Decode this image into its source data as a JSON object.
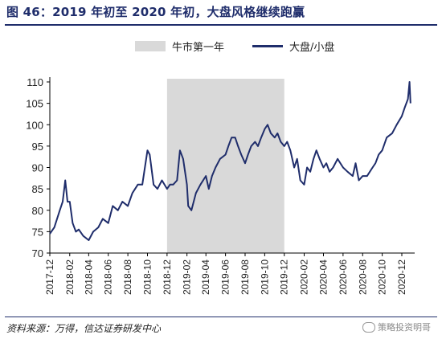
{
  "title": "图 46：2019 年初至 2020 年初，大盘风格继续跑赢",
  "legend": {
    "shade_label": "牛市第一年",
    "line_label": "大盘/小盘"
  },
  "source": "资料来源：万得，信达证券研发中心",
  "watermark": "策略投资明哥",
  "colors": {
    "line": "#1f2d6b",
    "shade": "#d9d9d9",
    "title": "#1f2d6b"
  },
  "chart_data": {
    "type": "line",
    "x_ticks": [
      "2017-12",
      "2018-02",
      "2018-04",
      "2018-06",
      "2018-08",
      "2018-10",
      "2018-12",
      "2019-02",
      "2019-04",
      "2019-06",
      "2019-08",
      "2019-10",
      "2019-12",
      "2020-02",
      "2020-04",
      "2020-06",
      "2020-08",
      "2020-10",
      "2020-12"
    ],
    "y_ticks": [
      "70",
      "75",
      "80",
      "85",
      "90",
      "95",
      "100",
      "105",
      "110"
    ],
    "ylim": [
      70,
      110
    ],
    "shaded_region": {
      "label": "牛市第一年",
      "start": "2018-12",
      "end": "2019-12"
    },
    "series": [
      {
        "name": "大盘/小盘",
        "points": [
          [
            "2017-12",
            74.5
          ],
          [
            "2017-12-15",
            76
          ],
          [
            "2018-01",
            80
          ],
          [
            "2018-01-10",
            82
          ],
          [
            "2018-01-18",
            87
          ],
          [
            "2018-01-25",
            82
          ],
          [
            "2018-02",
            82
          ],
          [
            "2018-02-10",
            77
          ],
          [
            "2018-02-20",
            75
          ],
          [
            "2018-03",
            75.5
          ],
          [
            "2018-03-15",
            74
          ],
          [
            "2018-04",
            73
          ],
          [
            "2018-04-15",
            75
          ],
          [
            "2018-05",
            76
          ],
          [
            "2018-05-15",
            78
          ],
          [
            "2018-06",
            77
          ],
          [
            "2018-06-15",
            81
          ],
          [
            "2018-07",
            80
          ],
          [
            "2018-07-15",
            82
          ],
          [
            "2018-08",
            81
          ],
          [
            "2018-08-15",
            84
          ],
          [
            "2018-09",
            86
          ],
          [
            "2018-09-15",
            86
          ],
          [
            "2018-10",
            94
          ],
          [
            "2018-10-08",
            93
          ],
          [
            "2018-10-20",
            86
          ],
          [
            "2018-11",
            85
          ],
          [
            "2018-11-15",
            87
          ],
          [
            "2018-12",
            85
          ],
          [
            "2018-12-10",
            86
          ],
          [
            "2018-12-20",
            86
          ],
          [
            "2019-01",
            87
          ],
          [
            "2019-01-10",
            94
          ],
          [
            "2019-01-20",
            92
          ],
          [
            "2019-02",
            86
          ],
          [
            "2019-02-05",
            81
          ],
          [
            "2019-02-15",
            80
          ],
          [
            "2019-03",
            84
          ],
          [
            "2019-03-15",
            86
          ],
          [
            "2019-04",
            88
          ],
          [
            "2019-04-10",
            85
          ],
          [
            "2019-04-20",
            88
          ],
          [
            "2019-05",
            90
          ],
          [
            "2019-05-15",
            92
          ],
          [
            "2019-06",
            93
          ],
          [
            "2019-06-10",
            95
          ],
          [
            "2019-06-20",
            97
          ],
          [
            "2019-07",
            97
          ],
          [
            "2019-07-10",
            95
          ],
          [
            "2019-07-20",
            93
          ],
          [
            "2019-08",
            91
          ],
          [
            "2019-08-10",
            93
          ],
          [
            "2019-08-20",
            95
          ],
          [
            "2019-09",
            96
          ],
          [
            "2019-09-10",
            95
          ],
          [
            "2019-09-20",
            97
          ],
          [
            "2019-10",
            99
          ],
          [
            "2019-10-10",
            100
          ],
          [
            "2019-10-20",
            98
          ],
          [
            "2019-11",
            97
          ],
          [
            "2019-11-10",
            98
          ],
          [
            "2019-11-20",
            96
          ],
          [
            "2019-12",
            95
          ],
          [
            "2019-12-10",
            96
          ],
          [
            "2019-12-20",
            94
          ],
          [
            "2020-01",
            90
          ],
          [
            "2020-01-10",
            92
          ],
          [
            "2020-01-20",
            87
          ],
          [
            "2020-02",
            86
          ],
          [
            "2020-02-10",
            90
          ],
          [
            "2020-02-20",
            89
          ],
          [
            "2020-03",
            92
          ],
          [
            "2020-03-10",
            94
          ],
          [
            "2020-03-20",
            92
          ],
          [
            "2020-04",
            90
          ],
          [
            "2020-04-10",
            91
          ],
          [
            "2020-04-20",
            89
          ],
          [
            "2020-05",
            90
          ],
          [
            "2020-05-15",
            92
          ],
          [
            "2020-06",
            90
          ],
          [
            "2020-06-15",
            89
          ],
          [
            "2020-07",
            88
          ],
          [
            "2020-07-10",
            91
          ],
          [
            "2020-07-20",
            87
          ],
          [
            "2020-08",
            88
          ],
          [
            "2020-08-15",
            88
          ],
          [
            "2020-09",
            90
          ],
          [
            "2020-09-10",
            91
          ],
          [
            "2020-09-20",
            93
          ],
          [
            "2020-10",
            94
          ],
          [
            "2020-10-15",
            97
          ],
          [
            "2020-11",
            98
          ],
          [
            "2020-11-15",
            100
          ],
          [
            "2020-12",
            102
          ],
          [
            "2020-12-10",
            104
          ],
          [
            "2020-12-20",
            106
          ],
          [
            "2020-12-25",
            110
          ],
          [
            "2020-12-28",
            105
          ]
        ]
      }
    ]
  }
}
